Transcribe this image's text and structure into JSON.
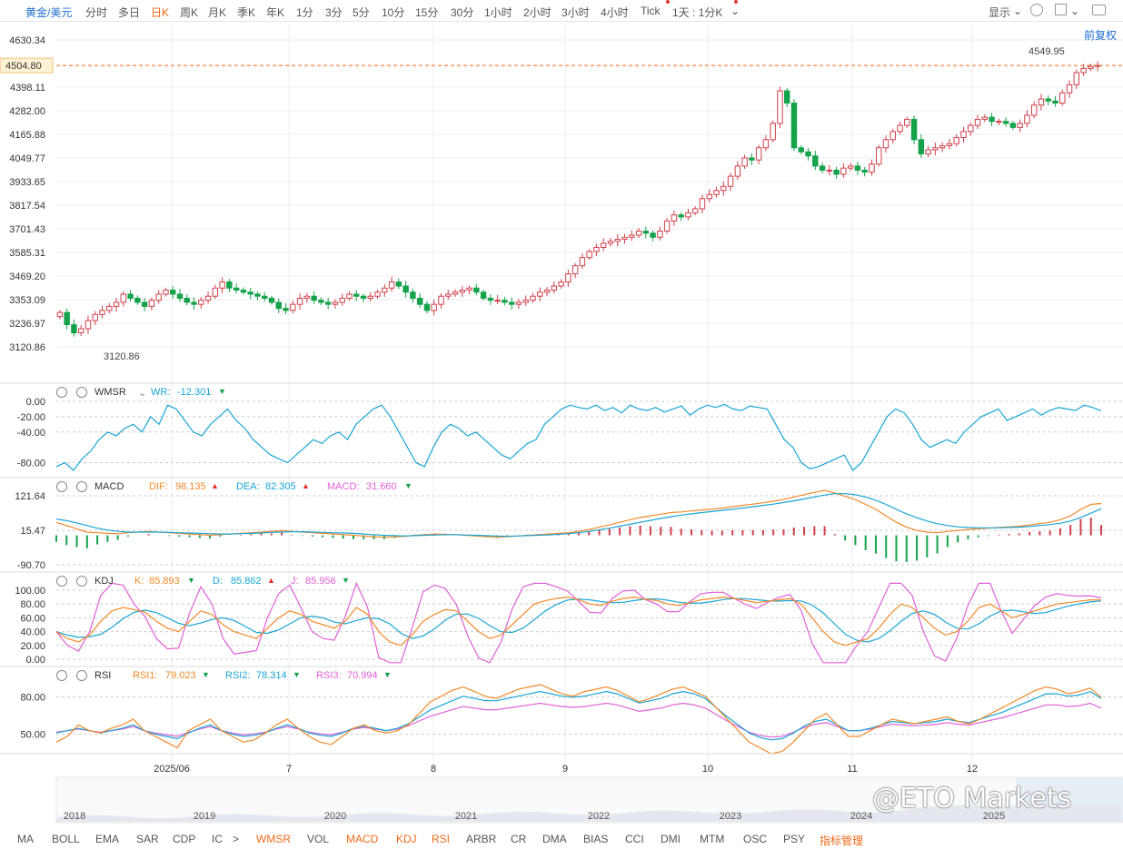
{
  "toolbar": {
    "symbol": "黄金/美元",
    "periods": [
      "分时",
      "多日",
      "日K",
      "周K",
      "月K",
      "季K",
      "年K",
      "1分",
      "3分",
      "5分",
      "10分",
      "15分",
      "30分",
      "1小时",
      "2小时",
      "3小时",
      "4小时",
      "Tick",
      "1天 : 1分K"
    ],
    "active_period": "日K",
    "display_label": "显示",
    "restore_label": "前复权"
  },
  "main": {
    "price_labels": [
      "4630.34",
      "4398.11",
      "4282.00",
      "4165.88",
      "4049.77",
      "3933.65",
      "3817.54",
      "3701.43",
      "3585.31",
      "3469.20",
      "3353.09",
      "3236.97",
      "3120.86"
    ],
    "last_price": "4504.80",
    "high_label": "4549.95",
    "low_label": "3120.86"
  },
  "x_labels": [
    "2025/06",
    "7",
    "8",
    "9",
    "10",
    "11",
    "12"
  ],
  "overview_years": [
    "2018",
    "2019",
    "2020",
    "2021",
    "2022",
    "2023",
    "2024",
    "2025"
  ],
  "indicators": {
    "wmsr": {
      "name": "WMSR",
      "label": "WR:",
      "value": "-12.301",
      "ticks": [
        "0.00",
        "-20.00",
        "-40.00",
        "-80.00"
      ]
    },
    "macd": {
      "name": "MACD",
      "dif_label": "DIF:",
      "dif": "98.135",
      "dea_label": "DEA:",
      "dea": "82.305",
      "macd_label": "MACD:",
      "macd": "31.660",
      "ticks": [
        "121.64",
        "15.47",
        "-90.70"
      ]
    },
    "kdj": {
      "name": "KDJ",
      "k_label": "K:",
      "k": "85.893",
      "d_label": "D:",
      "d": "85.862",
      "j_label": "J:",
      "j": "85.956",
      "ticks": [
        "100.00",
        "80.00",
        "60.00",
        "40.00",
        "20.00",
        "0.00"
      ]
    },
    "rsi": {
      "name": "RSI",
      "rsi1_label": "RSI1:",
      "rsi1": "79.023",
      "rsi2_label": "RSI2:",
      "rsi2": "78.314",
      "rsi3_label": "RSI3:",
      "rsi3": "70.994",
      "ticks": [
        "80.00",
        "50.00"
      ]
    }
  },
  "bottom_tabs": [
    "MA",
    "BOLL",
    "EMA",
    "SAR",
    "CDP",
    "IC",
    ">",
    "WMSR",
    "VOL",
    "MACD",
    "KDJ",
    "RSI",
    "ARBR",
    "CR",
    "DMA",
    "BIAS",
    "CCI",
    "DMI",
    "MTM",
    "OSC",
    "PSY",
    "指标管理"
  ],
  "bottom_active": [
    "WMSR",
    "MACD",
    "KDJ",
    "RSI",
    "指标管理"
  ],
  "watermark": "@ETO Markets",
  "colors": {
    "up": "#d0404a",
    "down": "#15a34a",
    "orange": "#f28a2a",
    "blue": "#1aa5d6",
    "pink": "#e060d8",
    "accent": "#f06a1a",
    "link": "#1f6fd1"
  },
  "chart_data": {
    "type": "candlestick",
    "ylim": [
      3120.86,
      4630.34
    ],
    "low": 3120.86,
    "high": 4549.95,
    "last": 4504.8,
    "closes": [
      3290,
      3230,
      3190,
      3210,
      3250,
      3280,
      3300,
      3320,
      3340,
      3380,
      3360,
      3340,
      3320,
      3350,
      3380,
      3400,
      3380,
      3360,
      3340,
      3330,
      3350,
      3370,
      3410,
      3440,
      3410,
      3400,
      3390,
      3380,
      3370,
      3360,
      3340,
      3310,
      3300,
      3330,
      3360,
      3370,
      3350,
      3340,
      3330,
      3340,
      3360,
      3380,
      3370,
      3360,
      3370,
      3390,
      3410,
      3440,
      3420,
      3390,
      3360,
      3330,
      3300,
      3330,
      3370,
      3380,
      3390,
      3400,
      3410,
      3390,
      3360,
      3350,
      3350,
      3340,
      3330,
      3340,
      3350,
      3370,
      3390,
      3400,
      3420,
      3440,
      3480,
      3520,
      3560,
      3590,
      3610,
      3630,
      3640,
      3650,
      3660,
      3670,
      3690,
      3680,
      3660,
      3690,
      3740,
      3770,
      3760,
      3780,
      3800,
      3850,
      3870,
      3890,
      3910,
      3960,
      4010,
      4050,
      4040,
      4100,
      4140,
      4220,
      4380,
      4320,
      4100,
      4080,
      4060,
      4010,
      3990,
      3990,
      3970,
      4000,
      4010,
      3990,
      3980,
      4020,
      4100,
      4140,
      4180,
      4210,
      4240,
      4140,
      4070,
      4090,
      4100,
      4110,
      4120,
      4150,
      4180,
      4210,
      4240,
      4250,
      4230,
      4230,
      4220,
      4200,
      4220,
      4260,
      4310,
      4340,
      4330,
      4320,
      4370,
      4410,
      4470,
      4490,
      4500,
      4505
    ],
    "wr": [
      -85,
      -80,
      -90,
      -75,
      -65,
      -50,
      -40,
      -45,
      -35,
      -30,
      -40,
      -20,
      -30,
      -5,
      -10,
      -25,
      -40,
      -45,
      -30,
      -20,
      -10,
      -25,
      -35,
      -50,
      -60,
      -70,
      -75,
      -80,
      -70,
      -60,
      -50,
      -55,
      -45,
      -40,
      -50,
      -30,
      -20,
      -10,
      -5,
      -20,
      -40,
      -60,
      -80,
      -85,
      -60,
      -40,
      -30,
      -35,
      -45,
      -40,
      -50,
      -60,
      -70,
      -75,
      -65,
      -55,
      -50,
      -30,
      -20,
      -10,
      -5,
      -8,
      -10,
      -5,
      -12,
      -8,
      -15,
      -5,
      -10,
      -12,
      -8,
      -14,
      -10,
      -6,
      -18,
      -10,
      -5,
      -8,
      -4,
      -10,
      -12,
      -6,
      -8,
      -10,
      -30,
      -50,
      -60,
      -80,
      -88,
      -85,
      -80,
      -75,
      -70,
      -90,
      -80,
      -60,
      -40,
      -20,
      -10,
      -15,
      -30,
      -50,
      -60,
      -55,
      -50,
      -55,
      -40,
      -30,
      -20,
      -15,
      -10,
      -25,
      -20,
      -15,
      -10,
      -18,
      -12,
      -8,
      -10,
      -12,
      -5,
      -8,
      -12.3
    ],
    "macd": {
      "dif": [
        40,
        30,
        20,
        10,
        8,
        6,
        5,
        8,
        10,
        12,
        10,
        8,
        6,
        4,
        2,
        0,
        2,
        4,
        6,
        8,
        10,
        12,
        14,
        12,
        10,
        8,
        6,
        4,
        2,
        0,
        -2,
        -4,
        -6,
        -5,
        -3,
        0,
        2,
        4,
        3,
        2,
        0,
        -2,
        -4,
        -6,
        -4,
        -2,
        0,
        2,
        4,
        6,
        8,
        12,
        18,
        25,
        32,
        40,
        48,
        55,
        60,
        65,
        70,
        72,
        75,
        78,
        80,
        84,
        88,
        92,
        96,
        100,
        105,
        110,
        118,
        125,
        132,
        138,
        130,
        120,
        110,
        95,
        80,
        60,
        40,
        25,
        15,
        10,
        8,
        12,
        15,
        18,
        20,
        22,
        24,
        26,
        28,
        32,
        36,
        40,
        48,
        60,
        80,
        95,
        98
      ],
      "dea": [
        50,
        45,
        38,
        30,
        22,
        16,
        12,
        10,
        10,
        10,
        10,
        9,
        8,
        7,
        6,
        5,
        4,
        4,
        5,
        6,
        7,
        9,
        10,
        11,
        11,
        10,
        9,
        8,
        7,
        6,
        4,
        2,
        0,
        -1,
        -2,
        -1,
        0,
        1,
        2,
        2,
        1,
        0,
        -1,
        -2,
        -3,
        -2,
        -1,
        0,
        1,
        3,
        5,
        8,
        12,
        17,
        22,
        28,
        34,
        40,
        46,
        52,
        57,
        62,
        66,
        70,
        73,
        77,
        80,
        84,
        88,
        92,
        96,
        101,
        106,
        112,
        118,
        124,
        128,
        128,
        125,
        118,
        108,
        95,
        80,
        66,
        54,
        44,
        36,
        30,
        26,
        24,
        23,
        23,
        23,
        24,
        25,
        27,
        30,
        33,
        37,
        44,
        55,
        68,
        82
      ]
    },
    "kdj": {
      "k": [
        40,
        30,
        25,
        35,
        55,
        70,
        75,
        72,
        68,
        55,
        45,
        40,
        55,
        70,
        65,
        50,
        40,
        35,
        30,
        45,
        60,
        70,
        65,
        55,
        50,
        45,
        55,
        75,
        65,
        40,
        25,
        20,
        35,
        55,
        65,
        72,
        70,
        55,
        40,
        30,
        35,
        50,
        65,
        80,
        85,
        88,
        90,
        86,
        80,
        78,
        84,
        88,
        90,
        87,
        85,
        80,
        78,
        82,
        86,
        88,
        90,
        88,
        85,
        82,
        84,
        86,
        88,
        80,
        60,
        40,
        25,
        20,
        25,
        30,
        45,
        65,
        80,
        75,
        60,
        45,
        35,
        40,
        55,
        75,
        80,
        70,
        60,
        65,
        70,
        75,
        80,
        82,
        84,
        86,
        85.9
      ]
    },
    "rsi": {
      "rsi1": [
        40,
        45,
        55,
        50,
        48,
        52,
        55,
        60,
        50,
        45,
        40,
        35,
        50,
        55,
        60,
        50,
        45,
        40,
        42,
        48,
        55,
        60,
        52,
        45,
        40,
        38,
        45,
        52,
        55,
        50,
        48,
        50,
        55,
        65,
        75,
        80,
        85,
        88,
        84,
        80,
        78,
        82,
        86,
        88,
        90,
        86,
        82,
        80,
        84,
        86,
        88,
        85,
        80,
        75,
        78,
        82,
        86,
        88,
        84,
        80,
        70,
        60,
        50,
        40,
        35,
        30,
        32,
        40,
        50,
        60,
        65,
        55,
        45,
        45,
        50,
        55,
        60,
        58,
        56,
        58,
        60,
        62,
        58,
        56,
        60,
        65,
        70,
        75,
        80,
        85,
        88,
        86,
        82,
        84,
        87,
        79
      ],
      "rsi2": [
        48,
        50,
        52,
        50,
        48,
        50,
        52,
        55,
        50,
        47,
        45,
        43,
        48,
        52,
        55,
        50,
        47,
        45,
        46,
        48,
        52,
        55,
        52,
        48,
        46,
        45,
        48,
        52,
        54,
        52,
        50,
        52,
        56,
        62,
        68,
        72,
        76,
        80,
        78,
        76,
        76,
        78,
        80,
        82,
        84,
        82,
        80,
        79,
        80,
        82,
        84,
        82,
        78,
        74,
        76,
        78,
        82,
        84,
        82,
        78,
        70,
        62,
        55,
        48,
        44,
        42,
        43,
        48,
        54,
        58,
        60,
        55,
        50,
        50,
        52,
        55,
        58,
        57,
        56,
        57,
        58,
        60,
        58,
        57,
        60,
        63,
        66,
        70,
        74,
        78,
        82,
        82,
        80,
        81,
        84,
        78
      ]
    }
  }
}
